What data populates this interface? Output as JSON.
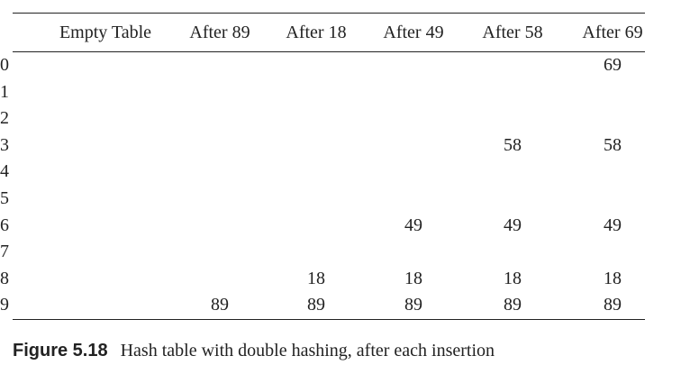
{
  "table": {
    "header": [
      "Empty Table",
      "After 89",
      "After 18",
      "After 49",
      "After 58",
      "After 69"
    ],
    "rows": [
      {
        "label": "0",
        "cells": [
          null,
          null,
          null,
          null,
          null,
          69
        ]
      },
      {
        "label": "1",
        "cells": [
          null,
          null,
          null,
          null,
          null,
          null
        ]
      },
      {
        "label": "2",
        "cells": [
          null,
          null,
          null,
          null,
          null,
          null
        ]
      },
      {
        "label": "3",
        "cells": [
          null,
          null,
          null,
          null,
          58,
          58
        ]
      },
      {
        "label": "4",
        "cells": [
          null,
          null,
          null,
          null,
          null,
          null
        ]
      },
      {
        "label": "5",
        "cells": [
          null,
          null,
          null,
          null,
          null,
          null
        ]
      },
      {
        "label": "6",
        "cells": [
          null,
          null,
          null,
          49,
          49,
          49
        ]
      },
      {
        "label": "7",
        "cells": [
          null,
          null,
          null,
          null,
          null,
          null
        ]
      },
      {
        "label": "8",
        "cells": [
          null,
          null,
          18,
          18,
          18,
          18
        ]
      },
      {
        "label": "9",
        "cells": [
          null,
          89,
          89,
          89,
          89,
          89
        ]
      }
    ]
  },
  "caption": {
    "figure": "Figure 5.18",
    "text": "Hash table with double hashing, after each insertion"
  }
}
